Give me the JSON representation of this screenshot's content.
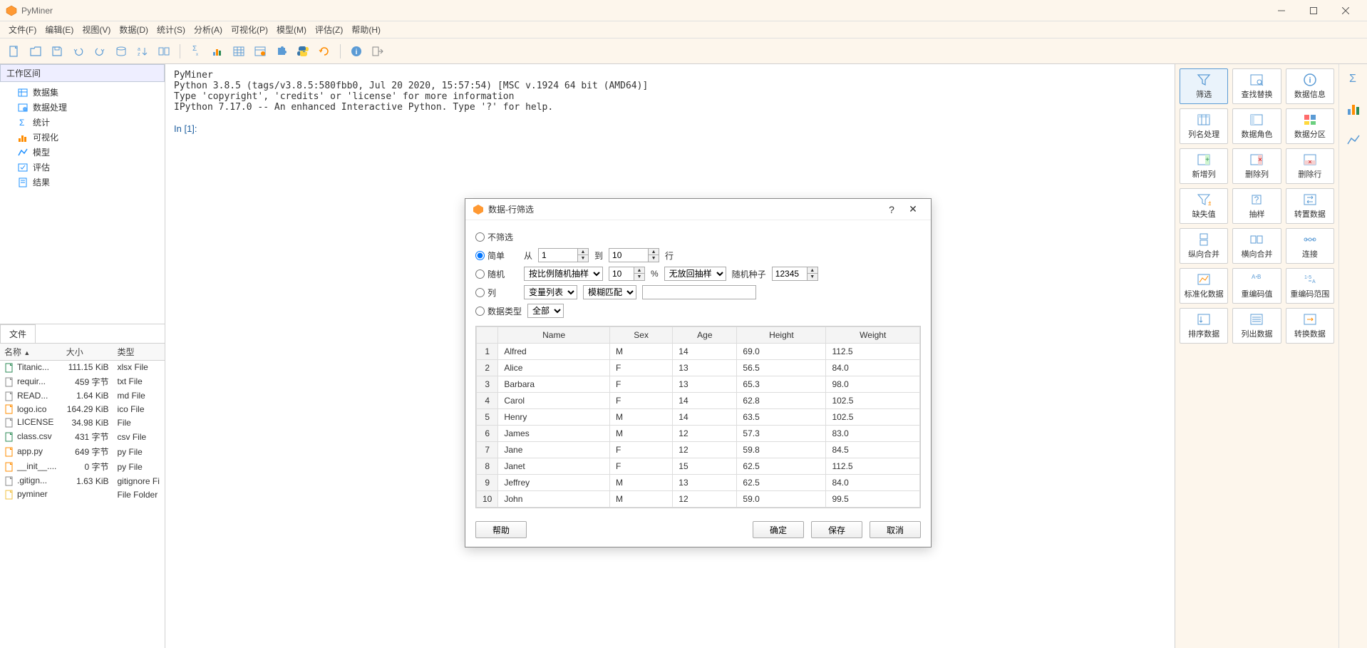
{
  "app": {
    "title": "PyMiner"
  },
  "menu": [
    "文件(F)",
    "编辑(E)",
    "视图(V)",
    "数据(D)",
    "统计(S)",
    "分析(A)",
    "可视化(P)",
    "模型(M)",
    "评估(Z)",
    "帮助(H)"
  ],
  "workspace": {
    "header": "工作区间",
    "items": [
      {
        "icon": "dataset",
        "label": "数据集",
        "color": "#1e90ff"
      },
      {
        "icon": "process",
        "label": "数据处理",
        "color": "#1e90ff"
      },
      {
        "icon": "stats",
        "label": "统计",
        "color": "#1e90ff"
      },
      {
        "icon": "visual",
        "label": "可视化",
        "color": "#ff8c00"
      },
      {
        "icon": "model",
        "label": "模型",
        "color": "#1e90ff"
      },
      {
        "icon": "eval",
        "label": "评估",
        "color": "#1e90ff"
      },
      {
        "icon": "result",
        "label": "结果",
        "color": "#1e90ff"
      }
    ]
  },
  "files": {
    "tab": "文件",
    "columns": [
      "名称",
      "大小",
      "类型"
    ],
    "rows": [
      {
        "icon": "xlsx",
        "name": "Titanic...",
        "size": "111.15 KiB",
        "type": "xlsx File",
        "color": "#2e8b57"
      },
      {
        "icon": "txt",
        "name": "requir...",
        "size": "459 字节",
        "type": "txt File",
        "color": "#888"
      },
      {
        "icon": "md",
        "name": "READ...",
        "size": "1.64 KiB",
        "type": "md File",
        "color": "#888"
      },
      {
        "icon": "ico",
        "name": "logo.ico",
        "size": "164.29 KiB",
        "type": "ico File",
        "color": "#ff8c00"
      },
      {
        "icon": "file",
        "name": "LICENSE",
        "size": "34.98 KiB",
        "type": "File",
        "color": "#888"
      },
      {
        "icon": "csv",
        "name": "class.csv",
        "size": "431 字节",
        "type": "csv File",
        "color": "#2e8b57"
      },
      {
        "icon": "py",
        "name": "app.py",
        "size": "649 字节",
        "type": "py File",
        "color": "#ff8c00"
      },
      {
        "icon": "py",
        "name": "__init__....",
        "size": "0 字节",
        "type": "py File",
        "color": "#ff8c00"
      },
      {
        "icon": "git",
        "name": ".gitign...",
        "size": "1.63 KiB",
        "type": "gitignore Fi",
        "color": "#888"
      },
      {
        "icon": "folder",
        "name": "pyminer",
        "size": "",
        "type": "File Folder",
        "color": "#f0c040"
      }
    ]
  },
  "console": {
    "lines": [
      "PyMiner",
      "Python 3.8.5 (tags/v3.8.5:580fbb0, Jul 20 2020, 15:57:54) [MSC v.1924 64 bit (AMD64)]",
      "Type 'copyright', 'credits' or 'license' for more information",
      "IPython 7.17.0 -- An enhanced Interactive Python. Type '?' for help.",
      "",
      "In [1]: "
    ]
  },
  "dialog": {
    "title": "数据-行筛选",
    "radios": {
      "none": "不筛选",
      "simple": "简单",
      "random": "随机",
      "column": "列",
      "dtype": "数据类型"
    },
    "simple": {
      "from_label": "从",
      "from_val": "1",
      "to_label": "到",
      "to_val": "10",
      "row_label": "行"
    },
    "random": {
      "method": "按比例随机抽样",
      "pct": "10",
      "pct_sym": "%",
      "replace": "无放回抽样",
      "seed_label": "随机种子",
      "seed": "12345"
    },
    "column": {
      "varlist": "变量列表",
      "match": "模糊匹配"
    },
    "dtype": {
      "all": "全部"
    },
    "table": {
      "columns": [
        "",
        "Name",
        "Sex",
        "Age",
        "Height",
        "Weight"
      ],
      "rows": [
        [
          "1",
          "Alfred",
          "M",
          "14",
          "69.0",
          "112.5"
        ],
        [
          "2",
          "Alice",
          "F",
          "13",
          "56.5",
          "84.0"
        ],
        [
          "3",
          "Barbara",
          "F",
          "13",
          "65.3",
          "98.0"
        ],
        [
          "4",
          "Carol",
          "F",
          "14",
          "62.8",
          "102.5"
        ],
        [
          "5",
          "Henry",
          "M",
          "14",
          "63.5",
          "102.5"
        ],
        [
          "6",
          "James",
          "M",
          "12",
          "57.3",
          "83.0"
        ],
        [
          "7",
          "Jane",
          "F",
          "12",
          "59.8",
          "84.5"
        ],
        [
          "8",
          "Janet",
          "F",
          "15",
          "62.5",
          "112.5"
        ],
        [
          "9",
          "Jeffrey",
          "M",
          "13",
          "62.5",
          "84.0"
        ],
        [
          "10",
          "John",
          "M",
          "12",
          "59.0",
          "99.5"
        ]
      ]
    },
    "buttons": {
      "help": "帮助",
      "ok": "确定",
      "save": "保存",
      "cancel": "取消"
    }
  },
  "tools": [
    {
      "label": "筛选",
      "icon": "filter",
      "active": true
    },
    {
      "label": "查找替换",
      "icon": "find"
    },
    {
      "label": "数据信息",
      "icon": "info"
    },
    {
      "label": "列名处理",
      "icon": "colname"
    },
    {
      "label": "数据角色",
      "icon": "role"
    },
    {
      "label": "数据分区",
      "icon": "partition"
    },
    {
      "label": "新增列",
      "icon": "addcol"
    },
    {
      "label": "删除列",
      "icon": "delcol"
    },
    {
      "label": "删除行",
      "icon": "delrow"
    },
    {
      "label": "缺失值",
      "icon": "missing"
    },
    {
      "label": "抽样",
      "icon": "sample"
    },
    {
      "label": "转置数据",
      "icon": "transpose"
    },
    {
      "label": "纵向合并",
      "icon": "vconcat"
    },
    {
      "label": "横向合并",
      "icon": "hconcat"
    },
    {
      "label": "连接",
      "icon": "join"
    },
    {
      "label": "标准化数据",
      "icon": "normalize"
    },
    {
      "label": "重编码值",
      "icon": "recode"
    },
    {
      "label": "重编码范围",
      "icon": "recoderange"
    },
    {
      "label": "排序数据",
      "icon": "sort"
    },
    {
      "label": "列出数据",
      "icon": "list"
    },
    {
      "label": "转换数据",
      "icon": "transform"
    }
  ],
  "colors": {
    "accent": "#5b9bd5",
    "bg": "#fdf6ec",
    "border": "#d0d0d0"
  }
}
